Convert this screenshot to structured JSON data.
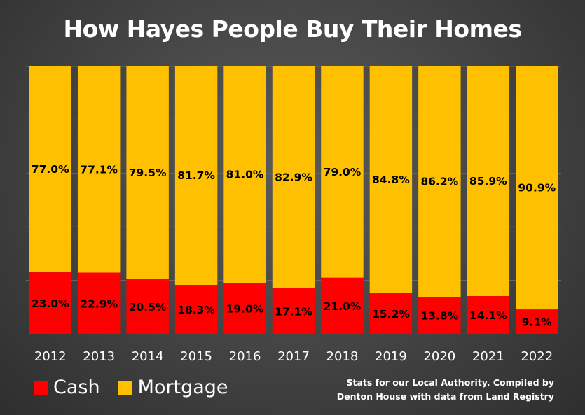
{
  "title": "How Hayes People Buy Their Homes",
  "chart_data": {
    "type": "bar",
    "stacked": true,
    "percent_stacked": true,
    "title": "How Hayes People Buy Their Homes",
    "categories": [
      "2012",
      "2013",
      "2014",
      "2015",
      "2016",
      "2017",
      "2018",
      "2019",
      "2020",
      "2021",
      "2022"
    ],
    "series": [
      {
        "name": "Cash",
        "color": "#ff0000",
        "values": [
          23.0,
          22.9,
          20.5,
          18.3,
          19.0,
          17.1,
          21.0,
          15.2,
          13.8,
          14.1,
          9.1
        ],
        "labels": [
          "23.0%",
          "22.9%",
          "20.5%",
          "18.3%",
          "19.0%",
          "17.1%",
          "21.0%",
          "15.2%",
          "13.8%",
          "14.1%",
          "9.1%"
        ]
      },
      {
        "name": "Mortgage",
        "color": "#ffc000",
        "values": [
          77.0,
          77.1,
          79.5,
          81.7,
          81.0,
          82.9,
          79.0,
          84.8,
          86.2,
          85.9,
          90.9
        ],
        "labels": [
          "77.0%",
          "77.1%",
          "79.5%",
          "81.7%",
          "81.0%",
          "82.9%",
          "79.0%",
          "84.8%",
          "86.2%",
          "85.9%",
          "90.9%"
        ]
      }
    ],
    "ylim": [
      0,
      100
    ],
    "grid": true,
    "legend_position": "bottom-left"
  },
  "legend": [
    {
      "label": "Cash",
      "color": "#ff0000"
    },
    {
      "label": "Mortgage",
      "color": "#ffc000"
    }
  ],
  "source_note": "Stats for our Local Authority. Compiled by Denton House with data from Land Registry"
}
